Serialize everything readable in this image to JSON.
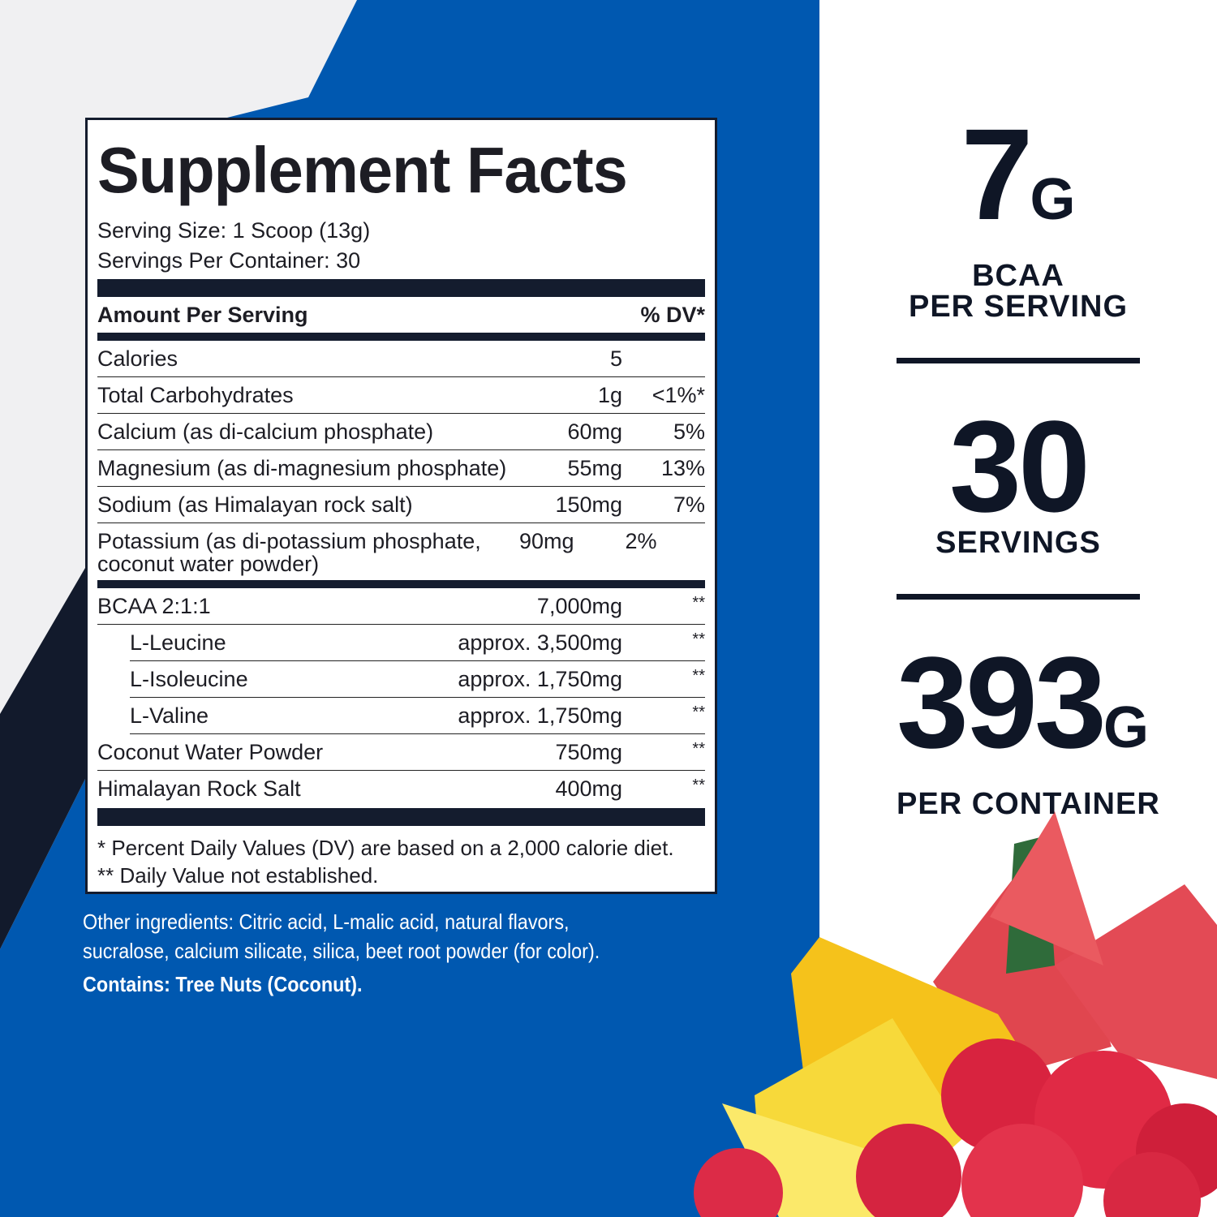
{
  "facts": {
    "title": "Supplement Facts",
    "serving_size": "Serving Size: 1 Scoop (13g)",
    "servings_per_container": "Servings Per Container: 30",
    "header": {
      "amount": "Amount Per Serving",
      "dv": "% DV*"
    },
    "sections": [
      {
        "rows": [
          {
            "name": "Calories",
            "amount": "5"
          },
          {
            "name": "Total Carbohydrates",
            "amount": "1g",
            "dv": "<1%*"
          },
          {
            "name": "Calcium (as di-calcium phosphate)",
            "amount": "60mg",
            "dv": "5%"
          },
          {
            "name": "Magnesium (as di-magnesium phosphate)",
            "amount": "55mg",
            "dv": "13%"
          },
          {
            "name": "Sodium (as Himalayan rock salt)",
            "amount": "150mg",
            "dv": "7%"
          },
          {
            "name": "Potassium (as di-potassium phosphate, coconut water powder)",
            "amount": "90mg",
            "dv": "2%"
          }
        ]
      },
      {
        "rows": [
          {
            "name": "BCAA 2:1:1",
            "amount": "7,000mg",
            "dv": "**",
            "components": [
              {
                "name": "L-Leucine",
                "amount": "approx. 3,500mg",
                "dv": "**"
              },
              {
                "name": "L-Isoleucine",
                "amount": "approx. 1,750mg",
                "dv": "**"
              },
              {
                "name": "L-Valine",
                "amount": "approx. 1,750mg",
                "dv": "**"
              }
            ]
          },
          {
            "name": "Coconut Water Powder",
            "amount": "750mg",
            "dv": "**"
          },
          {
            "name": "Himalayan Rock Salt",
            "amount": "400mg",
            "dv": "**"
          }
        ]
      }
    ],
    "footnotes": [
      "* Percent Daily Values (DV) are based on a 2,000 calorie diet.",
      "** Daily Value not established."
    ]
  },
  "other_ingredients": "Other ingredients: Citric acid, L-malic acid, natural flavors, sucralose, calcium silicate, silica, beet root powder (for color).",
  "contains": "Contains: Tree Nuts (Coconut).",
  "highlights": [
    {
      "value": "7",
      "unit": "G",
      "label": [
        "BCAA",
        "PER SERVING"
      ]
    },
    {
      "value": "30",
      "label": [
        "SERVINGS"
      ]
    },
    {
      "value": "393",
      "unit": "G",
      "label": [
        "PER CONTAINER"
      ]
    }
  ]
}
